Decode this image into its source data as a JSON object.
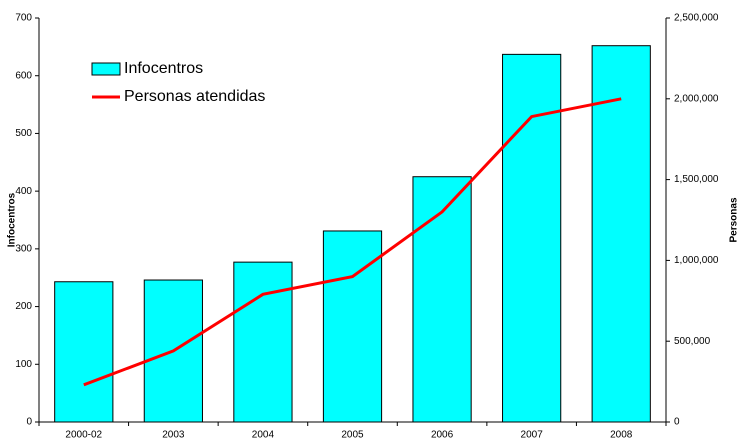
{
  "chart_data": {
    "type": "bar",
    "categories": [
      "2000-02",
      "2003",
      "2004",
      "2005",
      "2006",
      "2007",
      "2008"
    ],
    "series": [
      {
        "name": "Infocentros",
        "type": "bar",
        "color": "#00ffff",
        "values": [
          243,
          246,
          277,
          331,
          425,
          637,
          652
        ]
      },
      {
        "name": "Personas atendidas",
        "type": "line",
        "axis": "y2",
        "color": "#ff0000",
        "values": [
          230000,
          440000,
          790000,
          900000,
          1300000,
          1890000,
          2000000
        ]
      }
    ],
    "y_label": "Infocentros",
    "y2_label": "Personas",
    "ylim": [
      0,
      700
    ],
    "yticks": [
      0,
      100,
      200,
      300,
      400,
      500,
      600,
      700
    ],
    "y2lim": [
      0,
      2500000
    ],
    "y2ticks": [
      0,
      {
        "value": 500000,
        "label": "500,000"
      },
      {
        "value": 1000000,
        "label": "1,000,000"
      },
      {
        "value": 1500000,
        "label": "1,500,000"
      },
      {
        "value": 2000000,
        "label": "2,000,000"
      },
      {
        "value": 2500000,
        "label": "2,500,000"
      }
    ],
    "legend": "upper left",
    "grid": false
  }
}
